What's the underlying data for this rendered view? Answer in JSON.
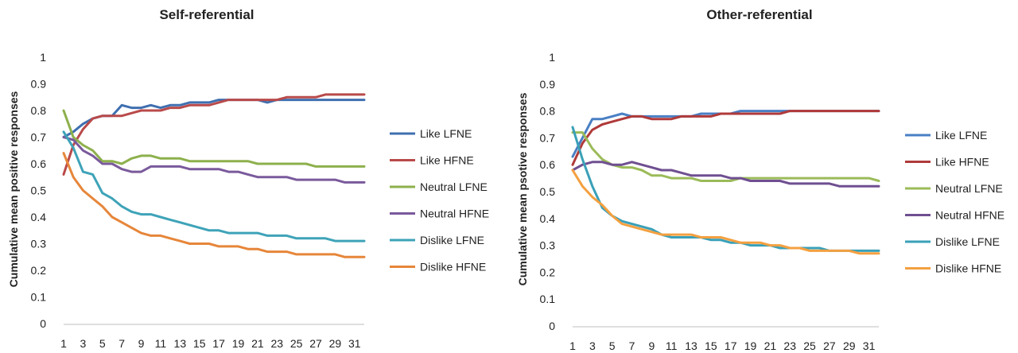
{
  "chart_data": [
    {
      "type": "line",
      "title": "Self-referential",
      "xlabel": "",
      "ylabel": "Cumulative mean positive responses",
      "ylim": [
        0,
        1
      ],
      "yticks": [
        "0",
        "0.1",
        "0.2",
        "0.3",
        "0.4",
        "0.5",
        "0.6",
        "0.7",
        "0.8",
        "0.9",
        "1"
      ],
      "xticks": [
        "1",
        "3",
        "5",
        "7",
        "9",
        "11",
        "13",
        "15",
        "17",
        "19",
        "21",
        "23",
        "25",
        "27",
        "29",
        "31"
      ],
      "legend_position": "right",
      "grid": false,
      "x": [
        1,
        2,
        3,
        4,
        5,
        6,
        7,
        8,
        9,
        10,
        11,
        12,
        13,
        14,
        15,
        16,
        17,
        18,
        19,
        20,
        21,
        22,
        23,
        24,
        25,
        26,
        27,
        28,
        29,
        30,
        31,
        32
      ],
      "series": [
        {
          "name": "Like LFNE",
          "color": "#3f6fb0",
          "values": [
            0.7,
            0.72,
            0.75,
            0.77,
            0.78,
            0.78,
            0.82,
            0.81,
            0.81,
            0.82,
            0.81,
            0.82,
            0.82,
            0.83,
            0.83,
            0.83,
            0.84,
            0.84,
            0.84,
            0.84,
            0.84,
            0.83,
            0.84,
            0.84,
            0.84,
            0.84,
            0.84,
            0.84,
            0.84,
            0.84,
            0.84,
            0.84
          ]
        },
        {
          "name": "Like HFNE",
          "color": "#b94a4a",
          "values": [
            0.56,
            0.67,
            0.73,
            0.77,
            0.78,
            0.78,
            0.78,
            0.79,
            0.8,
            0.8,
            0.8,
            0.81,
            0.81,
            0.82,
            0.82,
            0.82,
            0.83,
            0.84,
            0.84,
            0.84,
            0.84,
            0.84,
            0.84,
            0.85,
            0.85,
            0.85,
            0.85,
            0.86,
            0.86,
            0.86,
            0.86,
            0.86
          ]
        },
        {
          "name": "Neutral LFNE",
          "color": "#8db04c",
          "values": [
            0.8,
            0.7,
            0.67,
            0.65,
            0.61,
            0.61,
            0.6,
            0.62,
            0.63,
            0.63,
            0.62,
            0.62,
            0.62,
            0.61,
            0.61,
            0.61,
            0.61,
            0.61,
            0.61,
            0.61,
            0.6,
            0.6,
            0.6,
            0.6,
            0.6,
            0.6,
            0.59,
            0.59,
            0.59,
            0.59,
            0.59,
            0.59
          ]
        },
        {
          "name": "Neutral HFNE",
          "color": "#7a5a9c",
          "values": [
            0.7,
            0.69,
            0.65,
            0.63,
            0.6,
            0.6,
            0.58,
            0.57,
            0.57,
            0.59,
            0.59,
            0.59,
            0.59,
            0.58,
            0.58,
            0.58,
            0.58,
            0.57,
            0.57,
            0.56,
            0.55,
            0.55,
            0.55,
            0.55,
            0.54,
            0.54,
            0.54,
            0.54,
            0.54,
            0.53,
            0.53,
            0.53
          ]
        },
        {
          "name": "Dislike LFNE",
          "color": "#3ea3b8",
          "values": [
            0.72,
            0.66,
            0.57,
            0.56,
            0.49,
            0.47,
            0.44,
            0.42,
            0.41,
            0.41,
            0.4,
            0.39,
            0.38,
            0.37,
            0.36,
            0.35,
            0.35,
            0.34,
            0.34,
            0.34,
            0.34,
            0.33,
            0.33,
            0.33,
            0.32,
            0.32,
            0.32,
            0.32,
            0.31,
            0.31,
            0.31,
            0.31
          ]
        },
        {
          "name": "Dislike HFNE",
          "color": "#e6863a",
          "values": [
            0.64,
            0.55,
            0.5,
            0.47,
            0.44,
            0.4,
            0.38,
            0.36,
            0.34,
            0.33,
            0.33,
            0.32,
            0.31,
            0.3,
            0.3,
            0.3,
            0.29,
            0.29,
            0.29,
            0.28,
            0.28,
            0.27,
            0.27,
            0.27,
            0.26,
            0.26,
            0.26,
            0.26,
            0.26,
            0.25,
            0.25,
            0.25
          ]
        }
      ]
    },
    {
      "type": "line",
      "title": "Other-referential",
      "xlabel": "",
      "ylabel": "Cumulative mean psotive responses",
      "ylim": [
        0,
        1
      ],
      "yticks": [
        "0",
        "0.1",
        "0.2",
        "0.3",
        "0.4",
        "0.5",
        "0.6",
        "0.7",
        "0.8",
        "0.9",
        "1"
      ],
      "xticks": [
        "1",
        "3",
        "5",
        "7",
        "9",
        "11",
        "13",
        "15",
        "17",
        "19",
        "21",
        "23",
        "25",
        "27",
        "29",
        "31"
      ],
      "legend_position": "right",
      "grid": false,
      "x": [
        1,
        2,
        3,
        4,
        5,
        6,
        7,
        8,
        9,
        10,
        11,
        12,
        13,
        14,
        15,
        16,
        17,
        18,
        19,
        20,
        21,
        22,
        23,
        24,
        25,
        26,
        27,
        28,
        29,
        30,
        31,
        32
      ],
      "series": [
        {
          "name": "Like LFNE",
          "color": "#4a7fc4",
          "values": [
            0.63,
            0.7,
            0.77,
            0.77,
            0.78,
            0.79,
            0.78,
            0.78,
            0.78,
            0.78,
            0.78,
            0.78,
            0.78,
            0.79,
            0.79,
            0.79,
            0.79,
            0.8,
            0.8,
            0.8,
            0.8,
            0.8,
            0.8,
            0.8,
            0.8,
            0.8,
            0.8,
            0.8,
            0.8,
            0.8,
            0.8,
            0.8
          ]
        },
        {
          "name": "Like HFNE",
          "color": "#b03a3a",
          "values": [
            0.6,
            0.68,
            0.73,
            0.75,
            0.76,
            0.77,
            0.78,
            0.78,
            0.77,
            0.77,
            0.77,
            0.78,
            0.78,
            0.78,
            0.78,
            0.79,
            0.79,
            0.79,
            0.79,
            0.79,
            0.79,
            0.79,
            0.8,
            0.8,
            0.8,
            0.8,
            0.8,
            0.8,
            0.8,
            0.8,
            0.8,
            0.8
          ]
        },
        {
          "name": "Neutral LFNE",
          "color": "#9bbb59",
          "values": [
            0.72,
            0.72,
            0.66,
            0.62,
            0.6,
            0.59,
            0.59,
            0.58,
            0.56,
            0.56,
            0.55,
            0.55,
            0.55,
            0.54,
            0.54,
            0.54,
            0.54,
            0.55,
            0.55,
            0.55,
            0.55,
            0.55,
            0.55,
            0.55,
            0.55,
            0.55,
            0.55,
            0.55,
            0.55,
            0.55,
            0.55,
            0.54
          ]
        },
        {
          "name": "Neutral HFNE",
          "color": "#6f4f91",
          "values": [
            0.58,
            0.6,
            0.61,
            0.61,
            0.6,
            0.6,
            0.61,
            0.6,
            0.59,
            0.58,
            0.58,
            0.57,
            0.56,
            0.56,
            0.56,
            0.56,
            0.55,
            0.55,
            0.54,
            0.54,
            0.54,
            0.54,
            0.53,
            0.53,
            0.53,
            0.53,
            0.53,
            0.52,
            0.52,
            0.52,
            0.52,
            0.52
          ]
        },
        {
          "name": "Dislike LFNE",
          "color": "#3aa0b8",
          "values": [
            0.74,
            0.62,
            0.52,
            0.44,
            0.41,
            0.39,
            0.38,
            0.37,
            0.36,
            0.34,
            0.33,
            0.33,
            0.33,
            0.33,
            0.32,
            0.32,
            0.31,
            0.31,
            0.3,
            0.3,
            0.3,
            0.29,
            0.29,
            0.29,
            0.29,
            0.29,
            0.28,
            0.28,
            0.28,
            0.28,
            0.28,
            0.28
          ]
        },
        {
          "name": "Dislike HFNE",
          "color": "#f4a040",
          "values": [
            0.58,
            0.52,
            0.48,
            0.45,
            0.41,
            0.38,
            0.37,
            0.36,
            0.35,
            0.34,
            0.34,
            0.34,
            0.34,
            0.33,
            0.33,
            0.33,
            0.32,
            0.31,
            0.31,
            0.31,
            0.3,
            0.3,
            0.29,
            0.29,
            0.28,
            0.28,
            0.28,
            0.28,
            0.28,
            0.27,
            0.27,
            0.27
          ]
        }
      ]
    }
  ]
}
